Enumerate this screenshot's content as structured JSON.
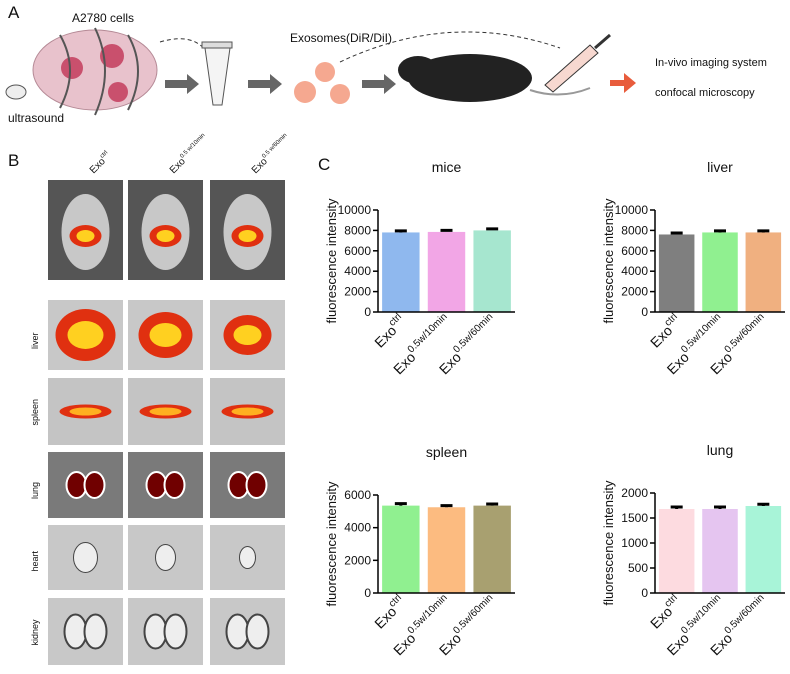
{
  "panel_a": {
    "label": "A",
    "cells": "A2780 cells",
    "ultrasound": "ultrasound",
    "exosomes": "Exosomes(DiR/DiI)",
    "imaging": "In-vivo imaging system",
    "confocal": "confocal microscopy"
  },
  "panel_b": {
    "label": "B",
    "columns": [
      {
        "main": "Exo",
        "sup": "ctrl"
      },
      {
        "main": "Exo",
        "sup": "0.5 w/10min"
      },
      {
        "main": "Exo",
        "sup": "0.5 w/60min"
      }
    ],
    "rows": [
      "liver",
      "spleen",
      "lung",
      "heart",
      "kidney"
    ]
  },
  "panel_c": {
    "label": "C"
  },
  "chart_data": [
    {
      "type": "bar",
      "title": "mice",
      "ylabel": "fluorescence intensity",
      "categories": [
        "Exo",
        "Exo",
        "Exo"
      ],
      "category_superscripts": [
        "ctrl",
        "0.5w/10min",
        "0.5w/60min"
      ],
      "values": [
        7800,
        7850,
        8000
      ],
      "errors": [
        150,
        150,
        150
      ],
      "colors": [
        "#8fb8ee",
        "#f2a6e6",
        "#a6e6cf"
      ],
      "ylim": [
        0,
        10000
      ],
      "yticks": [
        0,
        2000,
        4000,
        6000,
        8000,
        10000
      ]
    },
    {
      "type": "bar",
      "title": "liver",
      "ylabel": "fluorescence intensity",
      "categories": [
        "Exo",
        "Exo",
        "Exo"
      ],
      "category_superscripts": [
        "ctrl",
        "0.5w/10min",
        "0.5w/60min"
      ],
      "values": [
        7600,
        7800,
        7800
      ],
      "errors": [
        150,
        150,
        150
      ],
      "colors": [
        "#7f7f7f",
        "#90f090",
        "#f0b080"
      ],
      "ylim": [
        0,
        10000
      ],
      "yticks": [
        0,
        2000,
        4000,
        6000,
        8000,
        10000
      ]
    },
    {
      "type": "bar",
      "title": "spleen",
      "ylabel": "fluorescence intensity",
      "categories": [
        "Exo",
        "Exo",
        "Exo"
      ],
      "category_superscripts": [
        "ctrl",
        "0.5w/10min",
        "0.5w/60min"
      ],
      "values": [
        5350,
        5250,
        5350
      ],
      "errors": [
        120,
        100,
        100
      ],
      "colors": [
        "#90f090",
        "#fcbb80",
        "#a8a070"
      ],
      "ylim": [
        0,
        6000
      ],
      "yticks": [
        0,
        2000,
        4000,
        6000
      ]
    },
    {
      "type": "bar",
      "title": "lung",
      "ylabel": "fluorescence intensity",
      "categories": [
        "Exo",
        "Exo",
        "Exo"
      ],
      "category_superscripts": [
        "ctrl",
        "0.5w/10min",
        "0.5w/60min"
      ],
      "values": [
        1680,
        1680,
        1740
      ],
      "errors": [
        40,
        40,
        35
      ],
      "colors": [
        "#fddbe0",
        "#e5c5f0",
        "#a8f4d8"
      ],
      "ylim": [
        0,
        2000
      ],
      "yticks": [
        0,
        500,
        1000,
        1500,
        2000
      ]
    }
  ]
}
